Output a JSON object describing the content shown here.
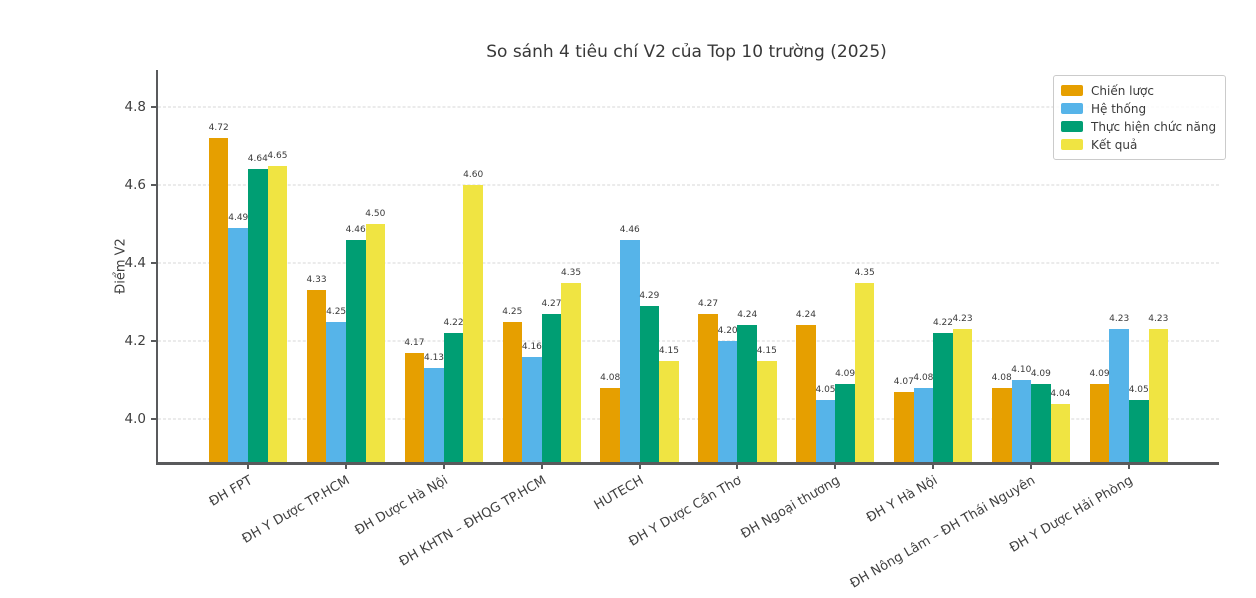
{
  "chart_data": {
    "type": "bar",
    "title": "So sánh 4 tiêu chí V2 của Top 10 trường (2025)",
    "ylabel": "Điểm V2",
    "xlabel": "",
    "categories": [
      "ĐH FPT",
      "ĐH Y Dược TP.HCM",
      "ĐH Dược Hà Nội",
      "ĐH KHTN – ĐHQG TP.HCM",
      "HUTECH",
      "ĐH Y Dược Cần Thơ",
      "ĐH Ngoại thương",
      "ĐH Y Hà Nội",
      "ĐH Nông Lâm – ĐH Thái Nguyên",
      "ĐH Y Dược Hải Phòng"
    ],
    "series": [
      {
        "name": "Chiến lược",
        "color": "#E69F00",
        "values": [
          4.72,
          4.33,
          4.17,
          4.25,
          4.08,
          4.27,
          4.24,
          4.07,
          4.08,
          4.09
        ]
      },
      {
        "name": "Hệ thống",
        "color": "#56B4E9",
        "values": [
          4.49,
          4.25,
          4.13,
          4.16,
          4.46,
          4.2,
          4.05,
          4.08,
          4.1,
          4.23
        ]
      },
      {
        "name": "Thực hiện chức năng",
        "color": "#009E73",
        "values": [
          4.64,
          4.46,
          4.22,
          4.27,
          4.29,
          4.24,
          4.09,
          4.22,
          4.09,
          4.05
        ]
      },
      {
        "name": "Kết quả",
        "color": "#F0E442",
        "values": [
          4.65,
          4.5,
          4.6,
          4.35,
          4.15,
          4.15,
          4.35,
          4.23,
          4.04,
          4.23
        ]
      }
    ],
    "yticks": [
      4.0,
      4.2,
      4.4,
      4.6,
      4.8
    ],
    "ytick_labels": [
      "4.0",
      "4.2",
      "4.4",
      "4.6",
      "4.8"
    ],
    "ylim": [
      3.89,
      4.895
    ],
    "grid": true,
    "grid_style": "dashed",
    "legend_position": "upper right",
    "value_labels": true,
    "value_label_format": "0.00",
    "x_tick_rotation_deg": 30
  }
}
